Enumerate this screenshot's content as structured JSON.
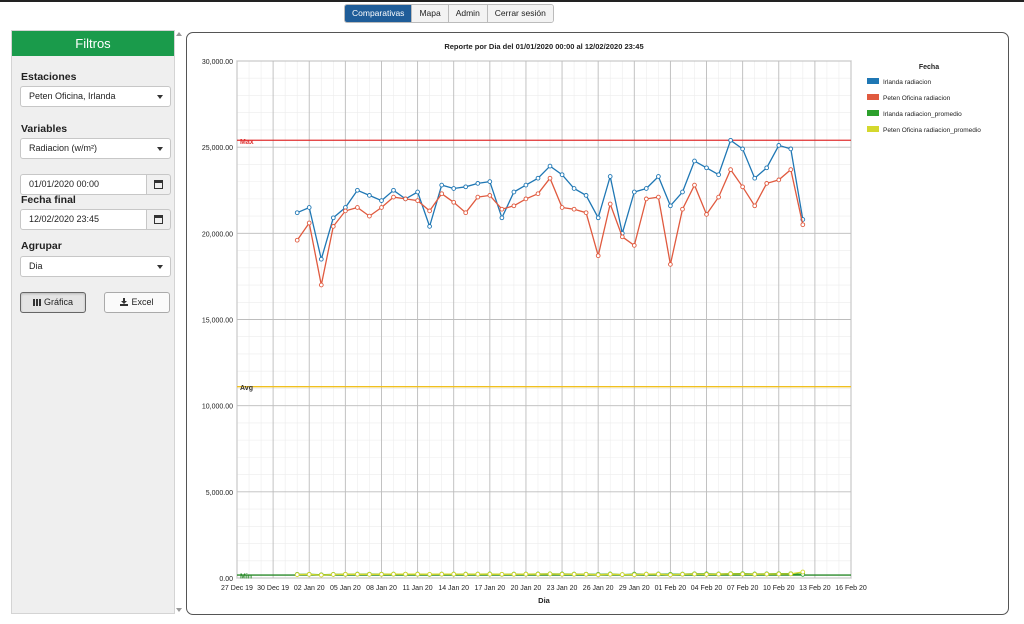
{
  "nav": {
    "tabs": [
      {
        "label": "Comparativas",
        "active": true
      },
      {
        "label": "Mapa",
        "active": false
      },
      {
        "label": "Admin",
        "active": false
      },
      {
        "label": "Cerrar sesión",
        "active": false
      }
    ]
  },
  "sidebar": {
    "title": "Filtros",
    "estaciones_label": "Estaciones",
    "estaciones_value": "Peten Oficina, Irlanda",
    "variables_label": "Variables",
    "variables_value": "Radiacion (w/m²)",
    "fecha_inicial_value": "01/01/2020 00:00",
    "fecha_final_label": "Fecha final",
    "fecha_final_value": "12/02/2020 23:45",
    "agrupar_label": "Agrupar",
    "agrupar_value": "Dia",
    "grafica_label": "Gráfica",
    "excel_label": "Excel"
  },
  "colors": {
    "irlanda": "#1f77b4",
    "peten": "#e05a3f",
    "irlanda_prom": "#2ca02c",
    "peten_prom": "#d4d82e",
    "max": "#e03030",
    "avg": "#f0c020",
    "min": "#2a8a2a",
    "header_green": "#1a9b4b",
    "nav_active": "#1f5d99"
  },
  "chart_data": {
    "type": "line",
    "title": "Reporte por Dia del 01/01/2020 00:00 al 12/02/2020 23:45",
    "xlabel": "Dia",
    "ylabel": "",
    "x_tick_labels": [
      "27 Dec 19",
      "30 Dec 19",
      "02 Jan 20",
      "05 Jan 20",
      "08 Jan 20",
      "11 Jan 20",
      "14 Jan 20",
      "17 Jan 20",
      "20 Jan 20",
      "23 Jan 20",
      "26 Jan 20",
      "29 Jan 20",
      "01 Feb 20",
      "04 Feb 20",
      "07 Feb 20",
      "10 Feb 20",
      "13 Feb 20",
      "16 Feb 20"
    ],
    "y_tick_labels": [
      "0.00",
      "5,000.00",
      "10,000.00",
      "15,000.00",
      "20,000.00",
      "25,000.00",
      "30,000.00"
    ],
    "ylim": [
      0,
      30000
    ],
    "grid": true,
    "legend_title": "Fecha",
    "legend_position": "right",
    "x_dates": [
      "01 Jan 20",
      "02 Jan 20",
      "03 Jan 20",
      "04 Jan 20",
      "05 Jan 20",
      "06 Jan 20",
      "07 Jan 20",
      "08 Jan 20",
      "09 Jan 20",
      "10 Jan 20",
      "11 Jan 20",
      "12 Jan 20",
      "13 Jan 20",
      "14 Jan 20",
      "15 Jan 20",
      "16 Jan 20",
      "17 Jan 20",
      "18 Jan 20",
      "19 Jan 20",
      "20 Jan 20",
      "21 Jan 20",
      "22 Jan 20",
      "23 Jan 20",
      "24 Jan 20",
      "25 Jan 20",
      "26 Jan 20",
      "27 Jan 20",
      "28 Jan 20",
      "29 Jan 20",
      "30 Jan 20",
      "31 Jan 20",
      "01 Feb 20",
      "02 Feb 20",
      "03 Feb 20",
      "04 Feb 20",
      "05 Feb 20",
      "06 Feb 20",
      "07 Feb 20",
      "08 Feb 20",
      "09 Feb 20",
      "10 Feb 20",
      "11 Feb 20",
      "12 Feb 20"
    ],
    "series": [
      {
        "name": "Irlanda radiacion",
        "color": "#1f77b4",
        "values": [
          21200,
          21500,
          18500,
          20900,
          21500,
          22500,
          22200,
          21900,
          22500,
          22000,
          22400,
          20400,
          22800,
          22600,
          22700,
          22900,
          23000,
          20900,
          22400,
          22800,
          23200,
          23900,
          23400,
          22600,
          22200,
          20900,
          23300,
          20000,
          22400,
          22600,
          23300,
          21600,
          22400,
          24200,
          23800,
          23400,
          25400,
          24900,
          23200,
          23800,
          25100,
          24900,
          20800
        ]
      },
      {
        "name": "Peten Oficina radiacion",
        "color": "#e05a3f",
        "values": [
          19600,
          20600,
          17000,
          20400,
          21300,
          21500,
          21000,
          21500,
          22100,
          22000,
          21900,
          21300,
          22300,
          21800,
          21200,
          22100,
          22200,
          21400,
          21600,
          22000,
          22300,
          23200,
          21500,
          21400,
          21200,
          18700,
          21700,
          19800,
          19300,
          22000,
          22100,
          18200,
          21400,
          22800,
          21100,
          22100,
          23700,
          22700,
          21600,
          22900,
          23100,
          23700,
          20500
        ]
      },
      {
        "name": "Irlanda radiacion_promedio",
        "color": "#2ca02c",
        "values": [
          210,
          215,
          185,
          209,
          215,
          225,
          222,
          219,
          225,
          220,
          224,
          204,
          228,
          226,
          227,
          229,
          230,
          209,
          224,
          228,
          232,
          239,
          234,
          226,
          222,
          209,
          233,
          200,
          224,
          226,
          233,
          216,
          224,
          242,
          238,
          234,
          254,
          249,
          232,
          238,
          251,
          249,
          208
        ]
      },
      {
        "name": "Peten Oficina radiacion_promedio",
        "color": "#d4d82e",
        "values": [
          196,
          206,
          170,
          204,
          213,
          215,
          210,
          215,
          221,
          220,
          219,
          213,
          223,
          218,
          212,
          221,
          222,
          214,
          216,
          220,
          223,
          232,
          215,
          214,
          212,
          187,
          217,
          198,
          193,
          220,
          221,
          182,
          214,
          228,
          211,
          221,
          237,
          227,
          216,
          229,
          231,
          237,
          350
        ]
      }
    ],
    "reference_lines": [
      {
        "label": "Max",
        "value": 25400,
        "color": "#e03030"
      },
      {
        "label": "Avg",
        "value": 11100,
        "color": "#f0c020"
      },
      {
        "label": "Min",
        "value": 170,
        "color": "#2a8a2a"
      }
    ]
  }
}
